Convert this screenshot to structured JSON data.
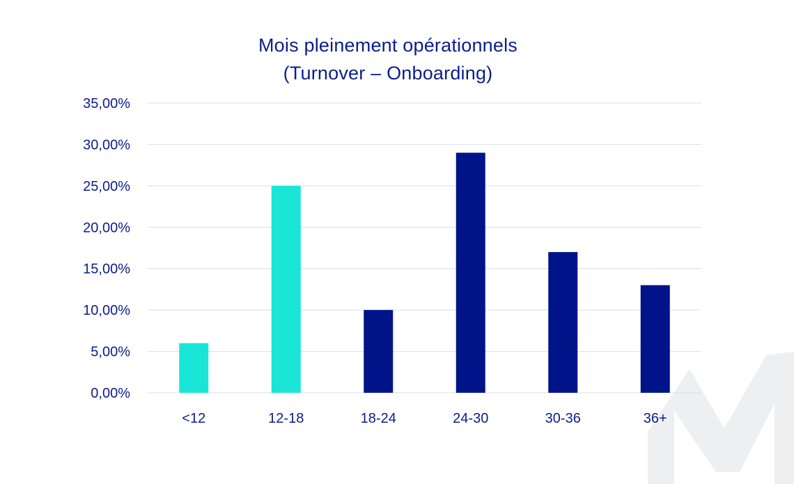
{
  "chart_data": {
    "type": "bar",
    "title": [
      "Mois pleinement opérationnels",
      "(Turnover – Onboarding)"
    ],
    "categories": [
      "<12",
      "12-18",
      "18-24",
      "24-30",
      "30-36",
      "36+"
    ],
    "values": [
      6,
      25,
      10,
      29,
      17,
      13
    ],
    "bar_colors": [
      "#19e6d6",
      "#19e6d6",
      "#001489",
      "#001489",
      "#001489",
      "#001489"
    ],
    "xlabel": "",
    "ylabel": "",
    "ylim": [
      0,
      35
    ],
    "yticks": [
      0,
      5,
      10,
      15,
      20,
      25,
      30,
      35
    ],
    "ytick_labels": [
      "0,00%",
      "5,00%",
      "10,00%",
      "15,00%",
      "20,00%",
      "25,00%",
      "30,00%",
      "35,00%"
    ],
    "grid": true,
    "legend": "none"
  },
  "colors": {
    "text": "#0b1d8a",
    "grid": "#d6def0",
    "watermark": "#eeeff0"
  },
  "watermark_icon": "letter-m-logo"
}
